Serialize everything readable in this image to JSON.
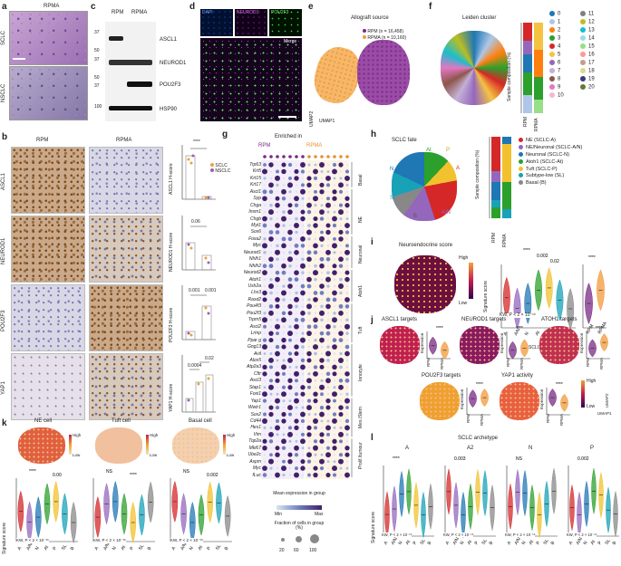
{
  "panel_labels": {
    "a": "a",
    "b": "b",
    "c": "c",
    "d": "d",
    "e": "e",
    "f": "f",
    "g": "g",
    "h": "h",
    "i": "i",
    "j": "j",
    "k": "k",
    "l": "l"
  },
  "panel_a": {
    "title": "RPMA",
    "rows": [
      "SCLC",
      "NSCLC"
    ]
  },
  "panel_b": {
    "cols": [
      "RPM",
      "RPMA"
    ],
    "rows": [
      "ASCL1",
      "NEUROD1",
      "POU2F3",
      "YAP1"
    ],
    "ylabels": [
      "ASCL1 H-score",
      "NEUROD1 H-score",
      "POU2F3 H-score",
      "YAP1 H-score"
    ],
    "legend": [
      {
        "name": "SCLC",
        "color": "#e8a33a"
      },
      {
        "name": "NSCLC",
        "color": "#9a5fb5"
      }
    ],
    "stats": [
      "****",
      "0.06",
      "0.001",
      "0.001",
      "0.0004",
      "0.02"
    ],
    "xticks": [
      "RPM",
      "RPMA"
    ]
  },
  "panel_c": {
    "cols": [
      "RPM",
      "RPMA"
    ],
    "markers": [
      "37",
      "50",
      "37",
      "50",
      "37",
      "100"
    ],
    "bands": [
      "ASCL1",
      "NEUROD1",
      "POU2F3",
      "HSP90"
    ]
  },
  "panel_d": {
    "channels": [
      "DAPI",
      "NEUROD1",
      "POU2F3"
    ],
    "merge": "Merge"
  },
  "panel_e": {
    "title": "Allograft source",
    "legend": [
      {
        "name": "RPM (n = 16,458)",
        "color": "#7a2a86"
      },
      {
        "name": "RPMA (n = 10,160)",
        "color": "#f19a3a"
      }
    ],
    "axes": [
      "UMAP1",
      "UMAP2"
    ]
  },
  "panel_f": {
    "title": "Leiden cluster",
    "ylabel": "Sample composition (%)",
    "yticks": [
      "100",
      "80",
      "60",
      "40",
      "20",
      "0"
    ],
    "xticks": [
      "RPM",
      "RPMA"
    ],
    "clusters": [
      {
        "id": "0",
        "color": "#1f77b4"
      },
      {
        "id": "1",
        "color": "#aec7e8"
      },
      {
        "id": "2",
        "color": "#ff7f0e"
      },
      {
        "id": "3",
        "color": "#2ca02c"
      },
      {
        "id": "4",
        "color": "#d62728"
      },
      {
        "id": "5",
        "color": "#f5c342"
      },
      {
        "id": "6",
        "color": "#9467bd"
      },
      {
        "id": "7",
        "color": "#c5b0d5"
      },
      {
        "id": "8",
        "color": "#8c564b"
      },
      {
        "id": "9",
        "color": "#e377c2"
      },
      {
        "id": "10",
        "color": "#f7b6d2"
      },
      {
        "id": "11",
        "color": "#7f7f7f"
      },
      {
        "id": "12",
        "color": "#bcbd22"
      },
      {
        "id": "13",
        "color": "#17becf"
      },
      {
        "id": "14",
        "color": "#9edae5"
      },
      {
        "id": "15",
        "color": "#98df8a"
      },
      {
        "id": "16",
        "color": "#ff9896"
      },
      {
        "id": "17",
        "color": "#c49c94"
      },
      {
        "id": "18",
        "color": "#dbdb8d"
      },
      {
        "id": "19",
        "color": "#393b79"
      },
      {
        "id": "20",
        "color": "#637939"
      }
    ]
  },
  "panel_g": {
    "title": "Enriched in",
    "groups": [
      "RPM",
      "RPMA"
    ],
    "genes": [
      "Trp63",
      "Krt5",
      "Krt15",
      "Krt17",
      "Ascl1",
      "Syp",
      "Chga",
      "Insm1",
      "Chgb",
      "Myt1",
      "Sox6",
      "Foxa2",
      "Myc",
      "Neurod1",
      "Nhlh1",
      "Nhlh2",
      "Neurod2",
      "Atoh1",
      "Ush2a",
      "Lhx3",
      "Rasd2",
      "Pou4f3",
      "Pou2f3",
      "Trpm5",
      "Ascl2",
      "Lrmp",
      "Ppar g",
      "Gng13",
      "Avil",
      "Alox5",
      "Atp2a3",
      "Cftr",
      "Ascl3",
      "Stap1",
      "Foxi1",
      "Yap1",
      "Wwtr1",
      "Sox2",
      "Cd44",
      "Hes1",
      "Vim",
      "Top2a",
      "Mki67",
      "Ube2c",
      "Aspm",
      "Myc",
      "fLuc"
    ],
    "categories": [
      "Basal",
      "NE",
      "Neuronal",
      "Atoh1",
      "Tuft",
      "Ionocyte",
      "Mes./Stem",
      "Prolif./tumour"
    ],
    "legend_title": "Mean expression in group",
    "legend_min": "Min",
    "legend_max": "Max",
    "size_title": "Fraction of cells in group (%)",
    "size_ticks": [
      "20",
      "60",
      "100"
    ]
  },
  "panel_h": {
    "title": "SCLC fate",
    "ylabel": "Sample composition (%)",
    "xticks": [
      "RPM",
      "RPMA"
    ],
    "legend": [
      {
        "name": "NE (SCLC-A)",
        "color": "#d62728"
      },
      {
        "name": "NE/Neuronal (SCLC-A/N)",
        "color": "#9467bd"
      },
      {
        "name": "Neuronal (SCLC-N)",
        "color": "#1f77b4"
      },
      {
        "name": "Atoh1 (SCLC-At)",
        "color": "#2ca02c"
      },
      {
        "name": "Tuft (SCLC-P)",
        "color": "#f2c12e"
      },
      {
        "name": "Subtype-low (SL)",
        "color": "#17a2b8"
      },
      {
        "name": "Basal (B)",
        "color": "#888888"
      }
    ],
    "umap_labels": [
      "At",
      "P",
      "A",
      "N",
      "SL",
      "B",
      "A/N"
    ],
    "axes": [
      "UMAP1",
      "UMAP2"
    ]
  },
  "panel_i": {
    "title": "Neuroendocrine score",
    "colorbar": [
      "High",
      "Low"
    ],
    "ylabel": "Signature score",
    "xlabel": "SCLC fate",
    "xticks": [
      "A",
      "A/N",
      "N",
      "At",
      "P",
      "SL",
      "B"
    ],
    "xticks2": [
      "RPM",
      "RPMA"
    ],
    "stats": [
      "****",
      "0.002",
      "0.02",
      "0.02",
      "****",
      "****",
      "****"
    ],
    "kw": "KW, P < 2 × 10⁻¹⁶",
    "axes": [
      "UMAP1",
      "UMAP2"
    ]
  },
  "panel_j": {
    "titles": [
      "ASCL1 targets",
      "NEUROD1 targets",
      "ATOH1 targets",
      "POU2F3 targets",
      "YAP1 activity"
    ],
    "ylabel": "Expression",
    "xticks": [
      "RPM",
      "RPMA"
    ],
    "stat": "****",
    "colorbar": [
      "High",
      "Low"
    ],
    "axes": [
      "UMAP1",
      "UMAP2"
    ]
  },
  "panel_k": {
    "titles": [
      "NE cell",
      "Tuft cell",
      "Basal cell"
    ],
    "colorbar": [
      "High",
      "Low"
    ],
    "ylabel": "Signature score",
    "xticks": [
      "A",
      "A/N",
      "N",
      "At",
      "P",
      "SL",
      "B"
    ],
    "kw": [
      "KW, P < 2 × 10⁻¹⁶",
      "KW, P < 2 × 10⁻¹⁶",
      "KW, P < 2 × 10⁻¹⁶"
    ],
    "stats": [
      "****",
      "0.00",
      "NS",
      "****",
      "NS",
      "0.002",
      "NS",
      "****"
    ]
  },
  "panel_l": {
    "title": "SCLC archetype",
    "subtitles": [
      "A",
      "A2",
      "N",
      "P"
    ],
    "ylabel": "Signature score",
    "xticks": [
      "A",
      "A/N",
      "N",
      "At",
      "P",
      "SL",
      "B"
    ],
    "kw": [
      "KW, P < 2 × 10⁻¹⁶",
      "KW, P < 2 × 10⁻¹⁶",
      "KW, P < 2 × 10⁻¹⁶",
      "KW, P < 2 × 10⁻¹⁶"
    ],
    "stats": [
      "****",
      "0.003",
      "NS",
      "0.002",
      "0.002",
      "NS",
      "0.008"
    ]
  },
  "fate_colors": [
    "#d62728",
    "#9467bd",
    "#1f77b4",
    "#2ca02c",
    "#f2c12e",
    "#17a2b8",
    "#888888"
  ]
}
